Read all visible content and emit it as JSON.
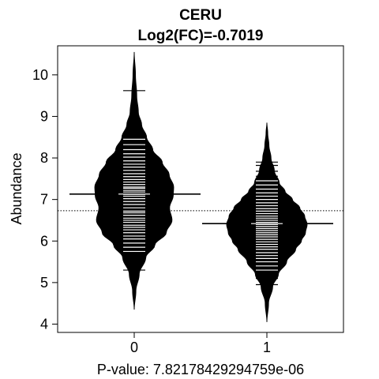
{
  "chart_data": {
    "type": "beanplot",
    "title": "CERU",
    "subtitle": "Log2(FC)=-0.7019",
    "xlabel": "P-value: 7.82178429294759e-06",
    "ylabel": "Abundance",
    "categories": [
      "0",
      "1"
    ],
    "ylim": [
      3.8,
      10.7
    ],
    "yticks": [
      4,
      5,
      6,
      7,
      8,
      9,
      10
    ],
    "overall_mean": 6.73,
    "series": [
      {
        "name": "0",
        "mean": 7.13,
        "min": 4.35,
        "max": 10.55,
        "density_y": [
          4.35,
          4.8,
          5.2,
          5.6,
          5.9,
          6.2,
          6.5,
          6.8,
          7.1,
          7.3,
          7.6,
          7.9,
          8.2,
          8.5,
          8.8,
          9.1,
          9.5,
          10.0,
          10.55
        ],
        "density_w": [
          0.0,
          0.04,
          0.12,
          0.28,
          0.5,
          0.78,
          0.92,
          0.86,
          0.95,
          0.96,
          0.85,
          0.68,
          0.45,
          0.3,
          0.18,
          0.1,
          0.06,
          0.03,
          0.0
        ],
        "points": [
          5.3,
          5.6,
          5.75,
          5.85,
          5.95,
          6.05,
          6.12,
          6.2,
          6.27,
          6.33,
          6.38,
          6.45,
          6.5,
          6.55,
          6.62,
          6.68,
          6.72,
          6.8,
          6.88,
          6.95,
          7.02,
          7.08,
          7.12,
          7.18,
          7.22,
          7.27,
          7.3,
          7.36,
          7.42,
          7.48,
          7.55,
          7.62,
          7.7,
          7.78,
          7.85,
          7.93,
          8.02,
          8.1,
          8.2,
          8.32,
          8.45,
          8.6,
          9.62
        ]
      },
      {
        "name": "1",
        "mean": 6.42,
        "min": 4.05,
        "max": 8.85,
        "density_y": [
          4.05,
          4.5,
          4.9,
          5.2,
          5.5,
          5.8,
          6.0,
          6.2,
          6.4,
          6.6,
          6.8,
          7.0,
          7.2,
          7.4,
          7.7,
          8.0,
          8.3,
          8.6,
          8.85
        ],
        "density_w": [
          0.0,
          0.04,
          0.14,
          0.28,
          0.48,
          0.7,
          0.84,
          0.94,
          0.98,
          0.92,
          0.8,
          0.62,
          0.44,
          0.3,
          0.18,
          0.1,
          0.05,
          0.02,
          0.0
        ],
        "points": [
          4.95,
          5.1,
          5.2,
          5.3,
          5.4,
          5.5,
          5.58,
          5.65,
          5.72,
          5.8,
          5.86,
          5.92,
          5.98,
          6.04,
          6.1,
          6.15,
          6.2,
          6.25,
          6.3,
          6.35,
          6.4,
          6.45,
          6.5,
          6.55,
          6.6,
          6.66,
          6.72,
          6.78,
          6.85,
          6.92,
          7.0,
          7.08,
          7.16,
          7.25,
          7.35,
          7.45,
          7.56,
          7.68,
          7.82,
          7.9
        ]
      }
    ]
  }
}
